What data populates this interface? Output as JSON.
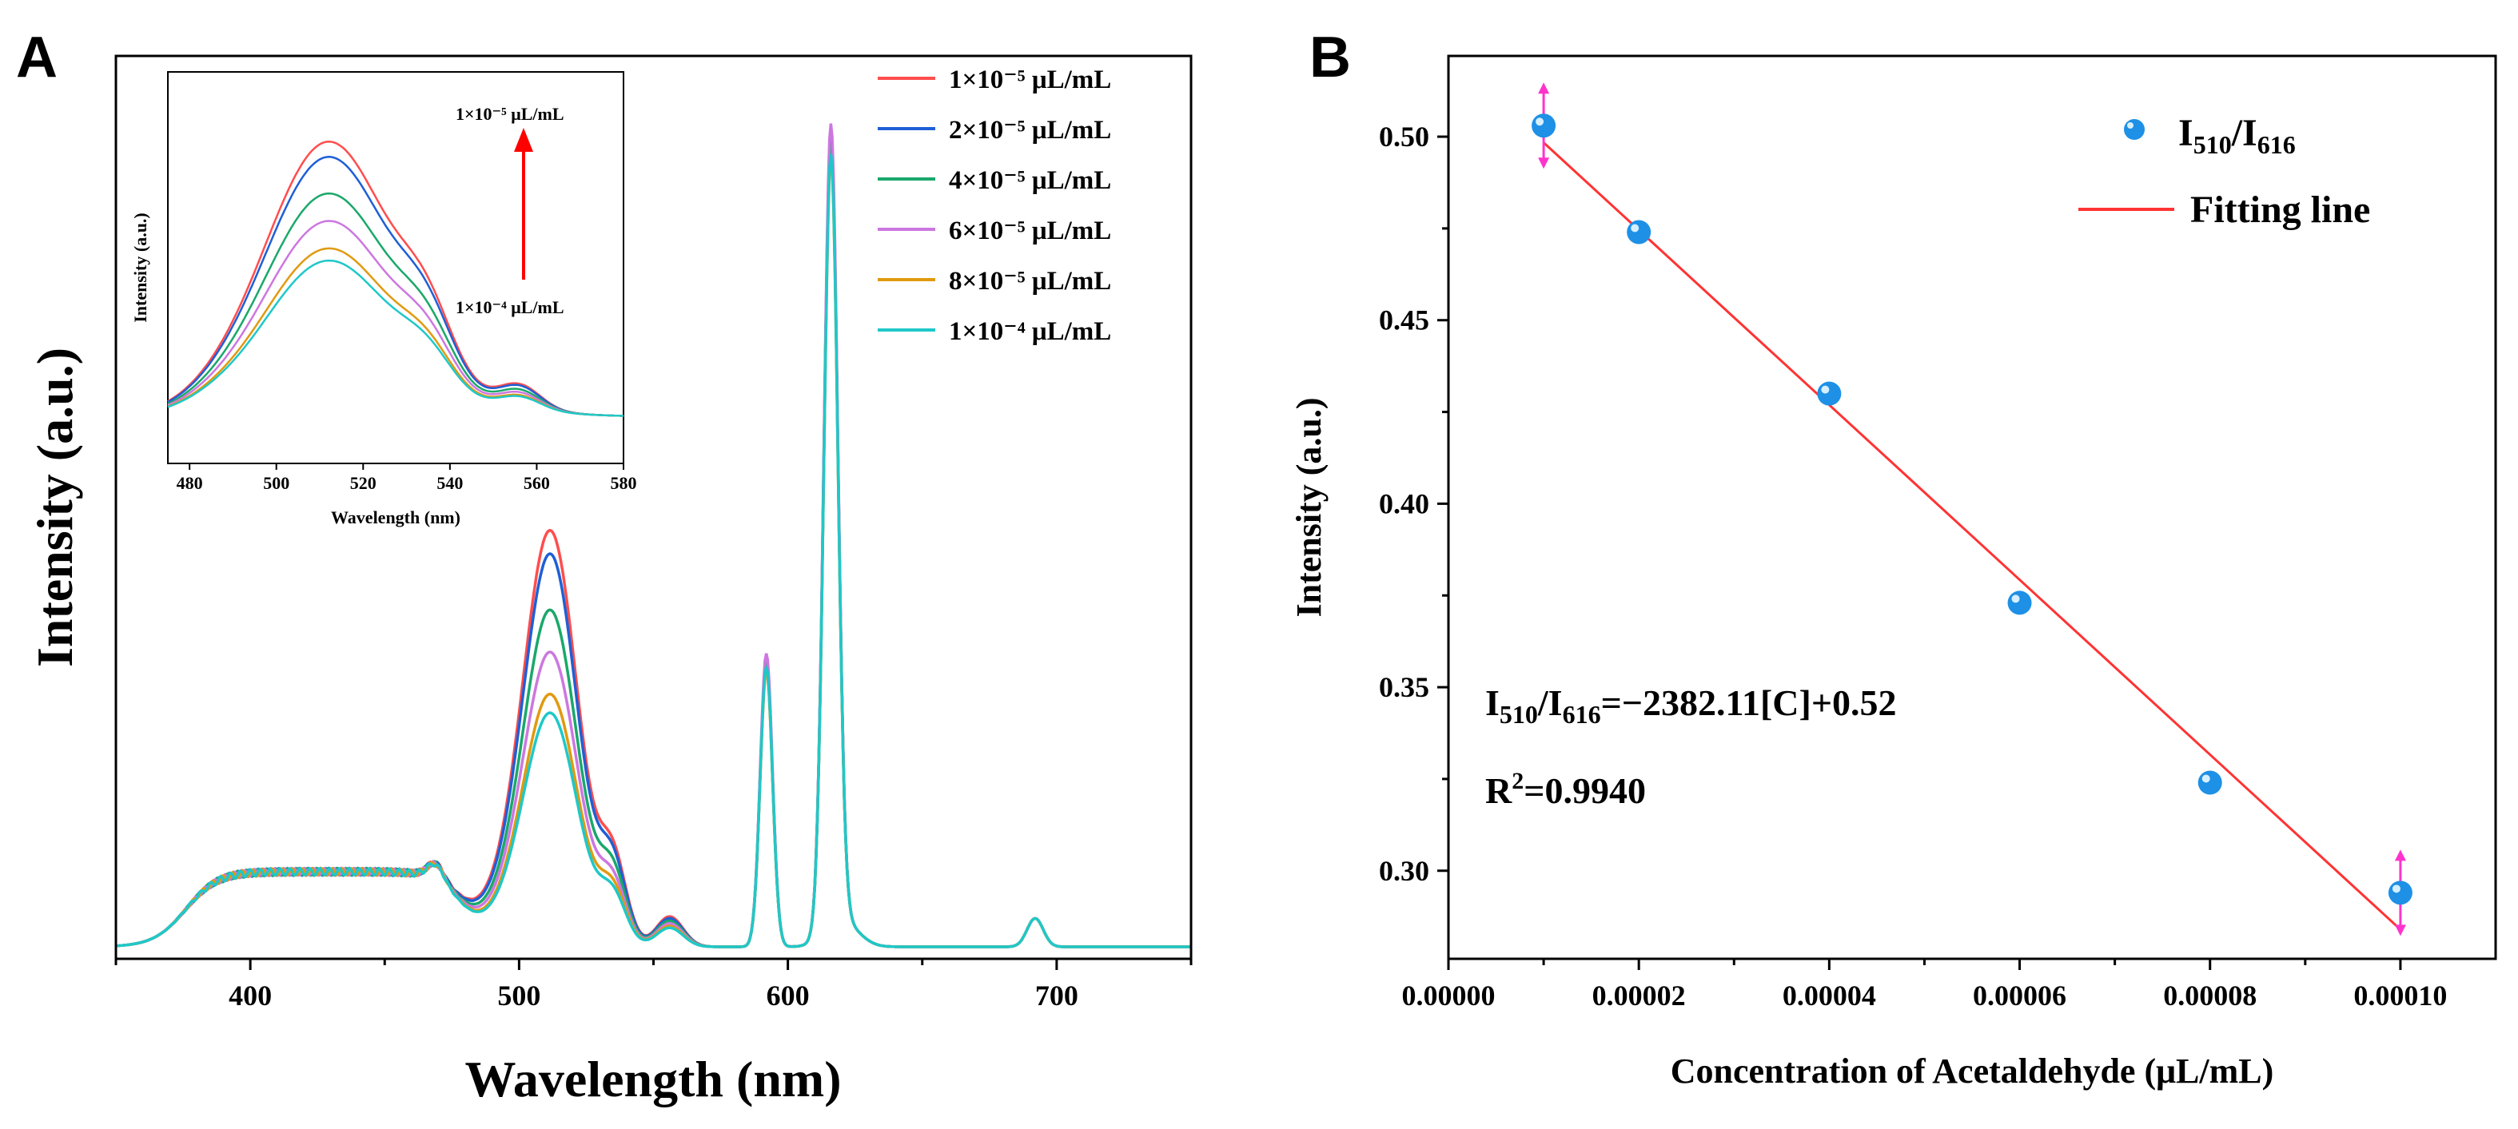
{
  "panels": {
    "a_label": "A",
    "b_label": "B"
  },
  "chart_data": [
    {
      "type": "line",
      "panel": "A",
      "title": "",
      "xlabel": "Wavelength (nm)",
      "ylabel": "Intensity (a.u.)",
      "xlim": [
        350,
        750
      ],
      "ylim": [
        0,
        1.05
      ],
      "xticks": [
        400,
        500,
        600,
        700
      ],
      "series": [
        {
          "name": "1×10⁻⁵ μL/mL",
          "color": "#ff4d4d",
          "peak510": 0.445,
          "bump535": 0.09,
          "bump555": 0.035,
          "peak592": 0.33,
          "peak616": 0.91
        },
        {
          "name": "2×10⁻⁵ μL/mL",
          "color": "#1f5fd6",
          "peak510": 0.42,
          "bump535": 0.085,
          "bump555": 0.033,
          "peak592": 0.325,
          "peak616": 0.915
        },
        {
          "name": "4×10⁻⁵ μL/mL",
          "color": "#1aa86a",
          "peak510": 0.36,
          "bump535": 0.075,
          "bump555": 0.03,
          "peak592": 0.33,
          "peak616": 0.905
        },
        {
          "name": "6×10⁻⁵ μL/mL",
          "color": "#cc77e0",
          "peak510": 0.315,
          "bump535": 0.065,
          "bump555": 0.027,
          "peak592": 0.34,
          "peak616": 0.93
        },
        {
          "name": "8×10⁻⁵ μL/mL",
          "color": "#e09a10",
          "peak510": 0.27,
          "bump535": 0.058,
          "bump555": 0.024,
          "peak592": 0.32,
          "peak616": 0.89
        },
        {
          "name": "1×10⁻⁴ μL/mL",
          "color": "#1fc8c8",
          "peak510": 0.25,
          "bump535": 0.052,
          "bump555": 0.022,
          "peak592": 0.325,
          "peak616": 0.895
        }
      ],
      "baseline": {
        "uv_band_center": 405,
        "uv_band_height": 0.087,
        "peak469": 0.018,
        "peak692": 0.033
      },
      "inset": {
        "xlabel": "Wavelength (nm)",
        "ylabel": "Intensity (a.u.)",
        "xlim": [
          475,
          580
        ],
        "xticks": [
          480,
          500,
          520,
          540,
          560,
          580
        ],
        "arrow_top_label": "1×10⁻⁵ μL/mL",
        "arrow_bottom_label": "1×10⁻⁴ μL/mL"
      }
    },
    {
      "type": "scatter",
      "panel": "B",
      "title": "",
      "xlabel": "Concentration of Acetaldehyde (μL/mL)",
      "ylabel": "Intensity (a.u.)",
      "xlim": [
        0,
        0.00011
      ],
      "ylim": [
        0.276,
        0.522
      ],
      "xticks": [
        "0.00000",
        "0.00002",
        "0.00004",
        "0.00006",
        "0.00008",
        "0.00010"
      ],
      "yticks": [
        "0.30",
        "0.35",
        "0.40",
        "0.45",
        "0.50"
      ],
      "x": [
        1e-05,
        2e-05,
        4e-05,
        6e-05,
        8e-05,
        0.0001
      ],
      "y": [
        0.503,
        0.474,
        0.43,
        0.373,
        0.324,
        0.294
      ],
      "error_bars_at": [
        1e-05,
        0.0001
      ],
      "fit": {
        "slope": -2382.11,
        "intercept": 0.5222,
        "x_range": [
          1e-05,
          0.0001
        ],
        "color": "#ff3333"
      },
      "point_color": "#1e90e6",
      "legend": {
        "points": "I510/I616",
        "line": "Fitting line"
      },
      "equation": {
        "I": "I",
        "sub1": "510",
        "slash": "/I",
        "sub2": "616",
        "rest": "=−2382.11[C]+0.52"
      },
      "r_squared": {
        "prefix": "R",
        "sup": "2",
        "value": "=0.9940"
      }
    }
  ]
}
